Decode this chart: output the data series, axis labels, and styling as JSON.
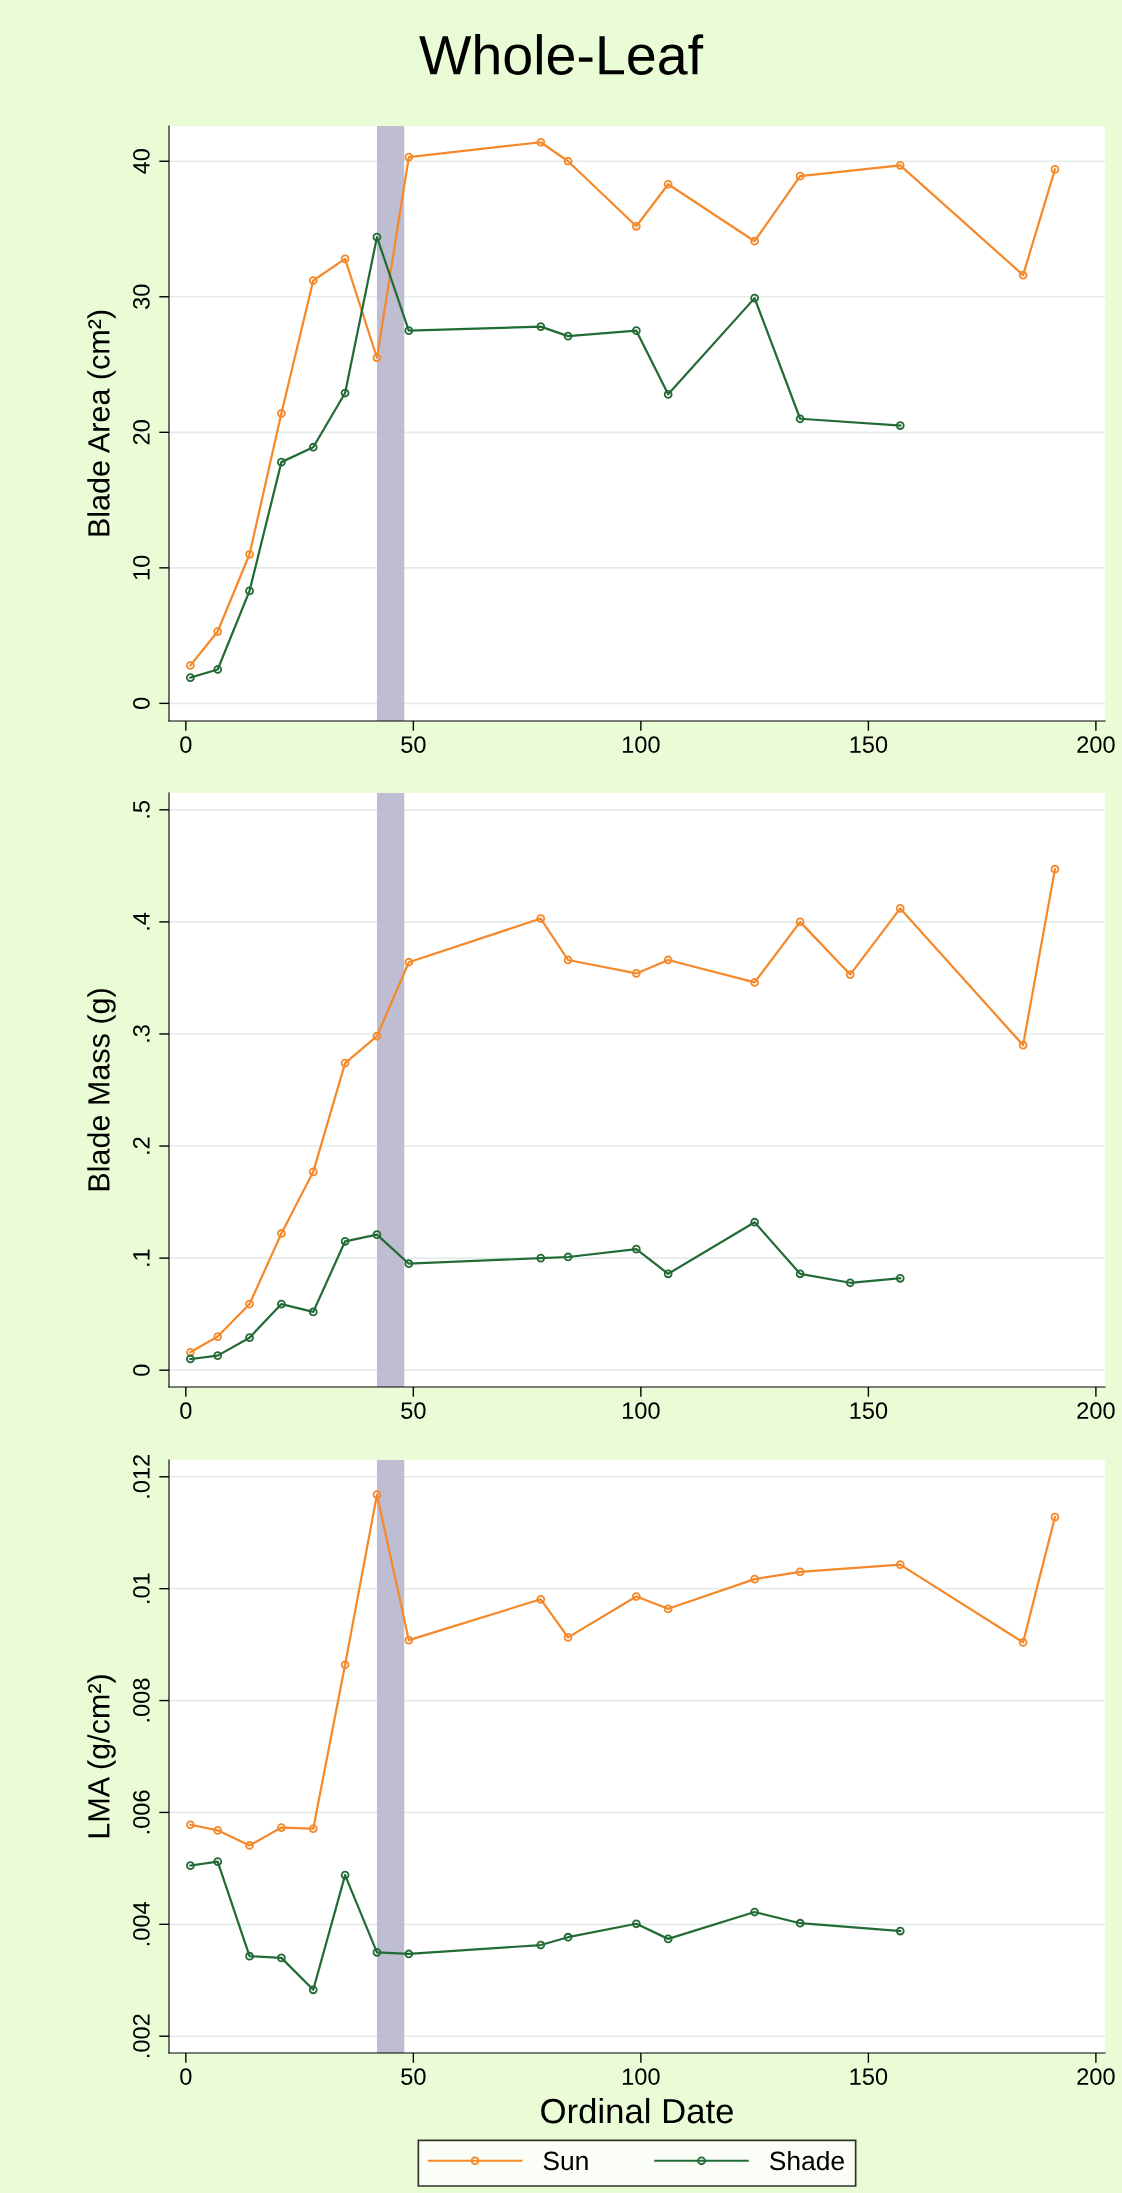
{
  "chart_data": [
    {
      "type": "line",
      "title": "Whole-Leaf",
      "ylabel": "Blade Area (cm²)",
      "xlim": [
        -3.7,
        202
      ],
      "xticks": [
        0,
        50,
        100,
        150,
        200
      ],
      "ylim": [
        -1.3,
        42.6
      ],
      "yticks": [
        0,
        10,
        20,
        30,
        40
      ],
      "grid": "y",
      "marker": "circle",
      "line_style": "solid",
      "bands": [
        {
          "axis": "x",
          "from": 42,
          "to": 48,
          "color": "#b8b6cc"
        }
      ],
      "series": [
        {
          "color": "#f5892a",
          "x": [
            1,
            7,
            14,
            21,
            28,
            35,
            42,
            49,
            78,
            84,
            99,
            106,
            125,
            135,
            157,
            184,
            191
          ],
          "values": [
            2.8,
            5.3,
            11.0,
            21.4,
            31.2,
            32.8,
            25.5,
            40.3,
            41.4,
            40.0,
            35.2,
            38.3,
            34.1,
            38.9,
            39.7,
            31.6,
            39.4
          ]
        },
        {
          "color": "#236b36",
          "x": [
            1,
            7,
            14,
            21,
            28,
            35,
            42,
            49,
            78,
            84,
            99,
            106,
            125,
            135,
            157
          ],
          "values": [
            1.9,
            2.5,
            8.3,
            17.8,
            18.9,
            22.9,
            34.4,
            27.5,
            27.8,
            27.1,
            27.5,
            22.8,
            29.9,
            21.0,
            20.5
          ]
        }
      ]
    },
    {
      "type": "line",
      "ylabel": "Blade Mass (g)",
      "xlim": [
        -3.7,
        202
      ],
      "xticks": [
        0,
        50,
        100,
        150,
        200
      ],
      "ylim": [
        -0.015,
        0.515
      ],
      "yticks": [
        0,
        {
          "value": 0.1,
          "label": ".1"
        },
        {
          "value": 0.2,
          "label": ".2"
        },
        {
          "value": 0.3,
          "label": ".3"
        },
        {
          "value": 0.4,
          "label": ".4"
        },
        {
          "value": 0.5,
          "label": ".5"
        }
      ],
      "grid": "y",
      "marker": "circle",
      "line_style": "solid",
      "bands": [
        {
          "axis": "x",
          "from": 42,
          "to": 48,
          "color": "#b8b6cc"
        }
      ],
      "series": [
        {
          "color": "#f5892a",
          "x": [
            1,
            7,
            14,
            21,
            28,
            35,
            42,
            49,
            78,
            84,
            99,
            106,
            125,
            135,
            146,
            157,
            184,
            191
          ],
          "values": [
            0.016,
            0.03,
            0.059,
            0.122,
            0.177,
            0.274,
            0.298,
            0.364,
            0.403,
            0.366,
            0.354,
            0.366,
            0.346,
            0.4,
            0.353,
            0.412,
            0.29,
            0.447
          ]
        },
        {
          "color": "#236b36",
          "x": [
            1,
            7,
            14,
            21,
            28,
            35,
            42,
            49,
            78,
            84,
            99,
            106,
            125,
            135,
            146,
            157
          ],
          "values": [
            0.01,
            0.013,
            0.029,
            0.059,
            0.052,
            0.115,
            0.121,
            0.095,
            0.1,
            0.101,
            0.108,
            0.086,
            0.132,
            0.086,
            0.078,
            0.082
          ]
        }
      ]
    },
    {
      "type": "line",
      "ylabel": "LMA (g/cm²)",
      "xlabel": "Ordinal Date",
      "xlim": [
        -3.7,
        202
      ],
      "xticks": [
        0,
        50,
        100,
        150,
        200
      ],
      "ylim": [
        0.0017,
        0.0123
      ],
      "yticks": [
        {
          "value": 0.002,
          "label": ".002"
        },
        {
          "value": 0.004,
          "label": ".004"
        },
        {
          "value": 0.006,
          "label": ".006"
        },
        {
          "value": 0.008,
          "label": ".008"
        },
        {
          "value": 0.01,
          "label": ".01"
        },
        {
          "value": 0.012,
          "label": ".012"
        }
      ],
      "grid": "y",
      "marker": "circle",
      "line_style": "solid",
      "legend": "bottom",
      "bands": [
        {
          "axis": "x",
          "from": 42,
          "to": 48,
          "color": "#b8b6cc"
        }
      ],
      "series": [
        {
          "name": "Sun",
          "color": "#f5892a",
          "x": [
            1,
            7,
            14,
            21,
            28,
            35,
            42,
            49,
            78,
            84,
            99,
            106,
            125,
            135,
            157,
            184,
            191
          ],
          "values": [
            0.00578,
            0.00568,
            0.00541,
            0.00573,
            0.00571,
            0.00864,
            0.01168,
            0.00908,
            0.00981,
            0.00913,
            0.00986,
            0.00964,
            0.01017,
            0.0103,
            0.01043,
            0.00904,
            0.01128
          ]
        },
        {
          "name": "Shade",
          "color": "#236b36",
          "x": [
            1,
            7,
            14,
            21,
            28,
            35,
            42,
            49,
            78,
            84,
            99,
            106,
            125,
            135,
            157
          ],
          "values": [
            0.00505,
            0.00512,
            0.00343,
            0.0034,
            0.00283,
            0.00488,
            0.0035,
            0.00347,
            0.00363,
            0.00377,
            0.00401,
            0.00374,
            0.00422,
            0.00402,
            0.00388
          ]
        }
      ]
    }
  ]
}
